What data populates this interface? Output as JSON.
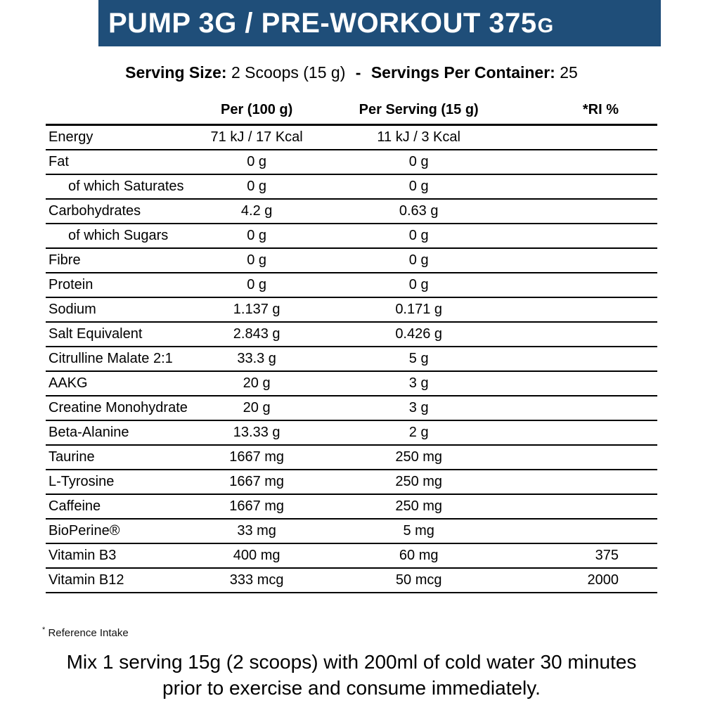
{
  "header": {
    "title_main": "PUMP 3G / PRE-WORKOUT 375",
    "title_unit": "G",
    "bar_color": "#1f4e79"
  },
  "serving_info": {
    "size_label": "Serving Size:",
    "size_value": "2 Scoops (15 g)",
    "separator": "-",
    "container_label": "Servings Per Container:",
    "container_value": "25"
  },
  "table": {
    "columns": [
      "",
      "Per (100 g)",
      "Per Serving (15 g)",
      "*RI %"
    ],
    "rows": [
      {
        "name": "Energy",
        "per100": "71 kJ / 17 Kcal",
        "per_serving": "11 kJ / 3 Kcal",
        "ri": "",
        "indent": false
      },
      {
        "name": "Fat",
        "per100": "0 g",
        "per_serving": "0 g",
        "ri": "",
        "indent": false
      },
      {
        "name": "of which Saturates",
        "per100": "0 g",
        "per_serving": "0 g",
        "ri": "",
        "indent": true
      },
      {
        "name": "Carbohydrates",
        "per100": "4.2 g",
        "per_serving": "0.63 g",
        "ri": "",
        "indent": false
      },
      {
        "name": "of which Sugars",
        "per100": "0 g",
        "per_serving": "0 g",
        "ri": "",
        "indent": true
      },
      {
        "name": "Fibre",
        "per100": "0 g",
        "per_serving": "0 g",
        "ri": "",
        "indent": false
      },
      {
        "name": "Protein",
        "per100": "0 g",
        "per_serving": "0 g",
        "ri": "",
        "indent": false
      },
      {
        "name": "Sodium",
        "per100": "1.137 g",
        "per_serving": "0.171 g",
        "ri": "",
        "indent": false
      },
      {
        "name": "Salt Equivalent",
        "per100": "2.843 g",
        "per_serving": "0.426 g",
        "ri": "",
        "indent": false
      },
      {
        "name": "Citrulline Malate 2:1",
        "per100": "33.3 g",
        "per_serving": "5 g",
        "ri": "",
        "indent": false
      },
      {
        "name": "AAKG",
        "per100": "20 g",
        "per_serving": "3 g",
        "ri": "",
        "indent": false
      },
      {
        "name": "Creatine Monohydrate",
        "per100": "20 g",
        "per_serving": "3 g",
        "ri": "",
        "indent": false
      },
      {
        "name": "Beta-Alanine",
        "per100": "13.33 g",
        "per_serving": "2 g",
        "ri": "",
        "indent": false
      },
      {
        "name": "Taurine",
        "per100": "1667 mg",
        "per_serving": "250 mg",
        "ri": "",
        "indent": false
      },
      {
        "name": "L-Tyrosine",
        "per100": "1667 mg",
        "per_serving": "250 mg",
        "ri": "",
        "indent": false
      },
      {
        "name": "Caffeine",
        "per100": "1667 mg",
        "per_serving": "250 mg",
        "ri": "",
        "indent": false
      },
      {
        "name": "BioPerine®",
        "per100": "33 mg",
        "per_serving": "5 mg",
        "ri": "",
        "indent": false
      },
      {
        "name": "Vitamin B3",
        "per100": "400 mg",
        "per_serving": "60 mg",
        "ri": "375",
        "indent": false
      },
      {
        "name": "Vitamin B12",
        "per100": "333 mcg",
        "per_serving": "50 mcg",
        "ri": "2000",
        "indent": false
      }
    ]
  },
  "footnote": {
    "marker": "*",
    "text": "Reference Intake"
  },
  "instructions": {
    "line1": "Mix 1 serving 15g (2 scoops) with 200ml of cold water 30 minutes",
    "line2": "prior to exercise and consume immediately."
  }
}
